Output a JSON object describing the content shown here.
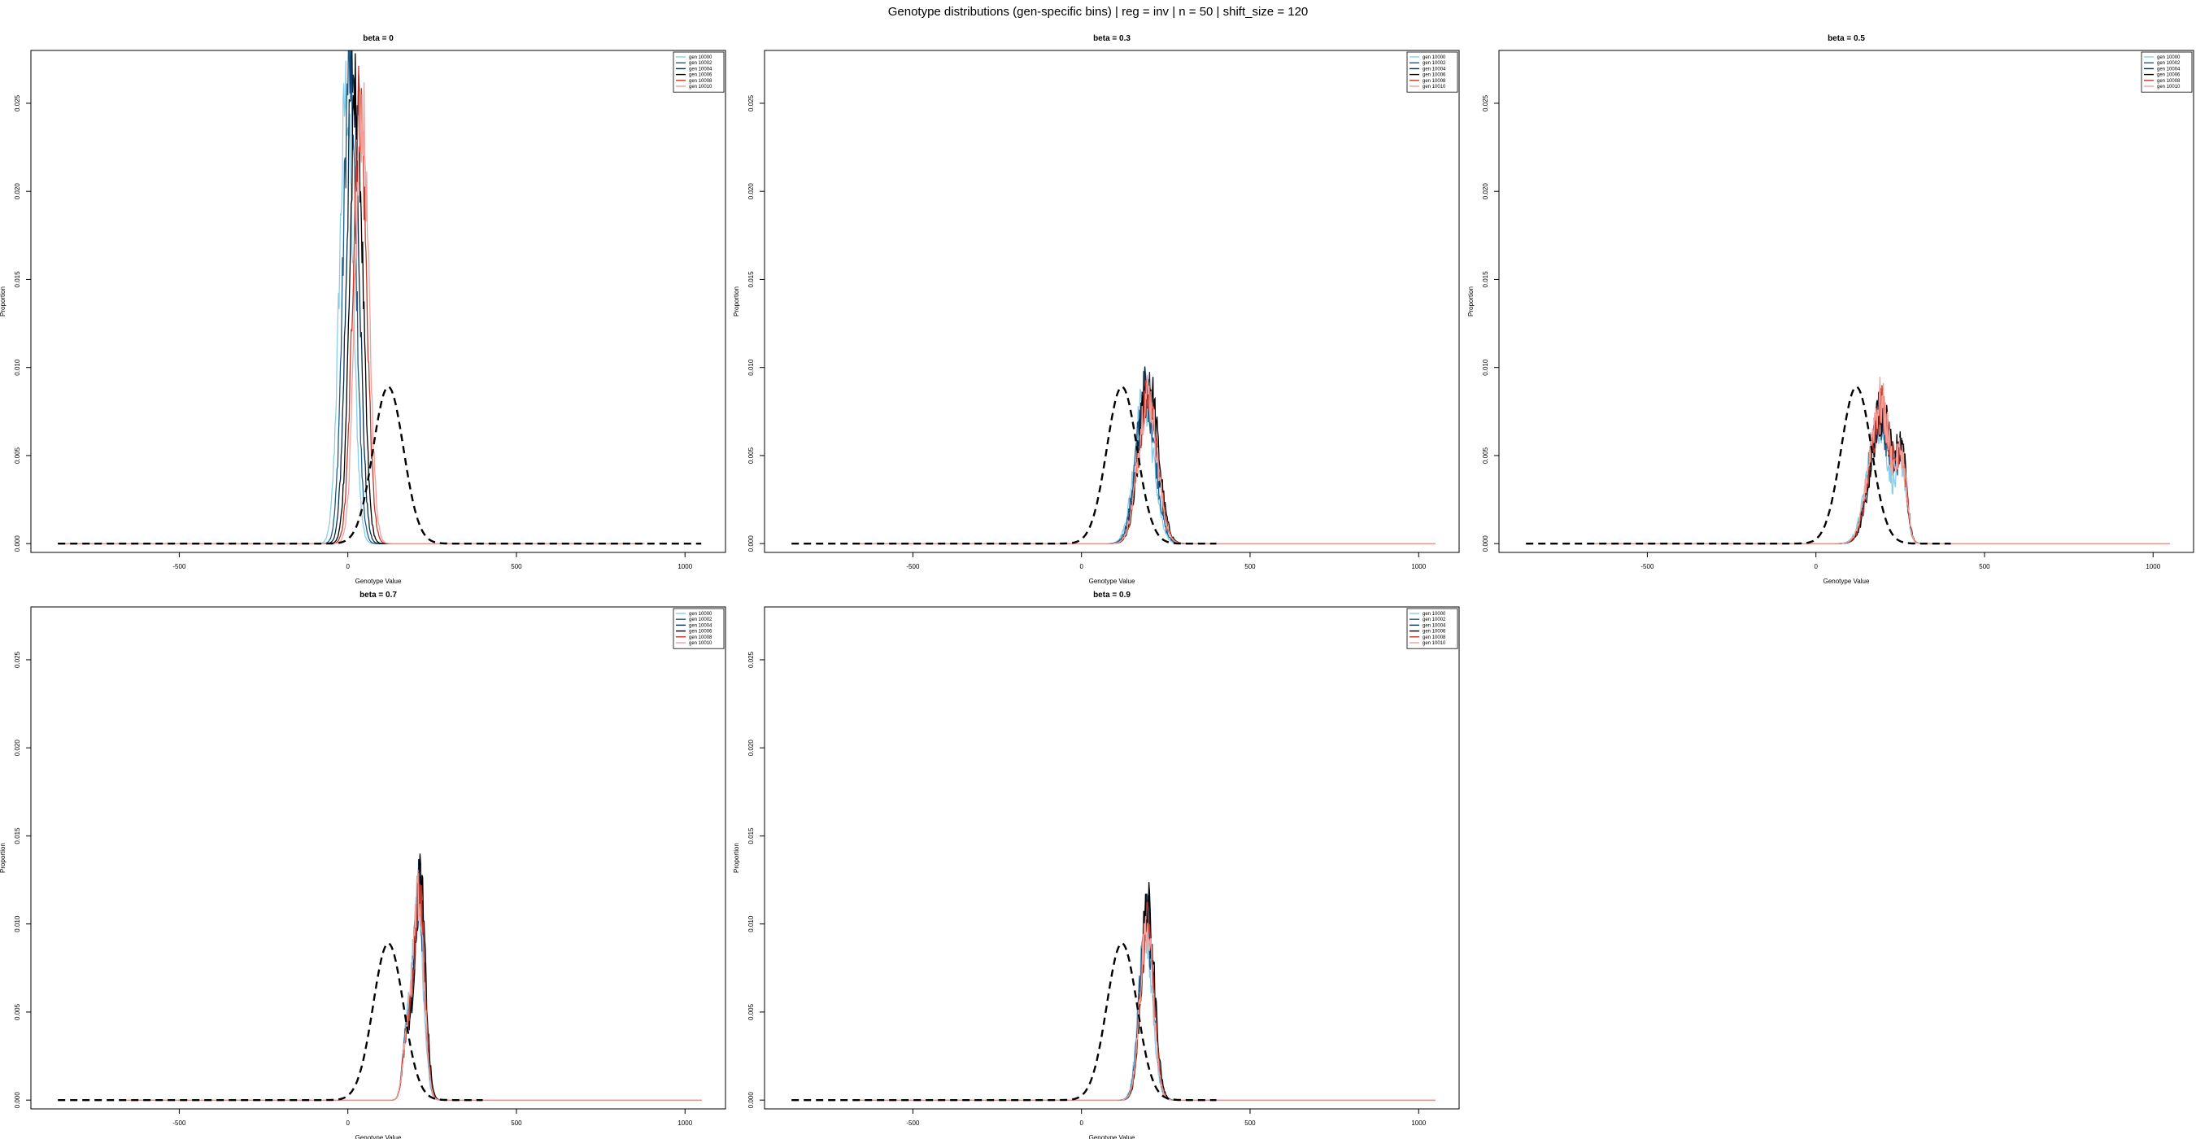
{
  "figure": {
    "title": "Genotype distributions (gen-specific bins) | reg = inv | n = 50 | shift_size = 120"
  },
  "colors": {
    "gen 10000": "#87ceeb",
    "gen 10002": "#1e5a8c",
    "gen 10004": "#0b2a48",
    "gen 10006": "#000000",
    "gen 10008": "#c0392b",
    "gen 10010": "#f4a09a",
    "reference": "#000000"
  },
  "chart_data": [
    {
      "type": "line",
      "title": "beta = 0",
      "xlabel": "Genotype Value",
      "ylabel": "Proportion",
      "xlim": [
        -940,
        1120
      ],
      "ylim": [
        -0.0005,
        0.028
      ],
      "xticks": [
        "-500",
        "0",
        "500",
        "1000"
      ],
      "yticks": [
        "0.000",
        "0.005",
        "0.010",
        "0.015",
        "0.020",
        "0.025"
      ],
      "legend": {
        "position": "top-right",
        "entries": [
          "gen 10000",
          "gen 10002",
          "gen 10004",
          "gen 10006",
          "gen 10008",
          "gen 10010"
        ]
      },
      "reference": {
        "style": "dashed",
        "mean": 120,
        "sd": 45,
        "peak": 0.0089,
        "xrange": [
          -860,
          1050
        ]
      },
      "series": [
        {
          "name": "gen 10000",
          "center": -5,
          "sd": 20,
          "peak": 0.0255,
          "xrange": [
            -860,
            880
          ],
          "noise": 0.12
        },
        {
          "name": "gen 10002",
          "center": 5,
          "sd": 19,
          "peak": 0.027,
          "xrange": [
            -860,
            880
          ],
          "noise": 0.12
        },
        {
          "name": "gen 10004",
          "center": 15,
          "sd": 19,
          "peak": 0.0268,
          "xrange": [
            -860,
            880
          ],
          "noise": 0.12
        },
        {
          "name": "gen 10006",
          "center": 25,
          "sd": 19,
          "peak": 0.0258,
          "xrange": [
            -860,
            880
          ],
          "noise": 0.12
        },
        {
          "name": "gen 10008",
          "center": 35,
          "sd": 20,
          "peak": 0.025,
          "xrange": [
            -860,
            880
          ],
          "noise": 0.12
        },
        {
          "name": "gen 10010",
          "center": 42,
          "sd": 20,
          "peak": 0.0245,
          "xrange": [
            -860,
            880
          ],
          "noise": 0.12
        }
      ]
    },
    {
      "type": "line",
      "title": "beta = 0.3",
      "xlabel": "Genotype Value",
      "ylabel": "Proportion",
      "xlim": [
        -940,
        1120
      ],
      "ylim": [
        -0.0005,
        0.028
      ],
      "xticks": [
        "-500",
        "0",
        "500",
        "1000"
      ],
      "yticks": [
        "0.000",
        "0.005",
        "0.010",
        "0.015",
        "0.020",
        "0.025"
      ],
      "legend": {
        "position": "top-right",
        "entries": [
          "gen 10000",
          "gen 10002",
          "gen 10004",
          "gen 10006",
          "gen 10008",
          "gen 10010"
        ]
      },
      "reference": {
        "style": "dashed",
        "mean": 120,
        "sd": 45,
        "peak": 0.0089,
        "xrange": [
          -860,
          400
        ]
      },
      "series": [
        {
          "name": "gen 10000",
          "center": 185,
          "sd": 28,
          "peak": 0.0082,
          "xrange": [
            -660,
            1050
          ],
          "noise": 0.18
        },
        {
          "name": "gen 10002",
          "center": 190,
          "sd": 28,
          "peak": 0.0086,
          "xrange": [
            -660,
            1050
          ],
          "noise": 0.18
        },
        {
          "name": "gen 10004",
          "center": 195,
          "sd": 28,
          "peak": 0.0088,
          "xrange": [
            -660,
            1050
          ],
          "noise": 0.18
        },
        {
          "name": "gen 10006",
          "center": 200,
          "sd": 28,
          "peak": 0.009,
          "xrange": [
            -660,
            1050
          ],
          "noise": 0.18
        },
        {
          "name": "gen 10008",
          "center": 198,
          "sd": 28,
          "peak": 0.0086,
          "xrange": [
            -660,
            1050
          ],
          "noise": 0.18
        },
        {
          "name": "gen 10010",
          "center": 196,
          "sd": 28,
          "peak": 0.0085,
          "xrange": [
            -660,
            1050
          ],
          "noise": 0.18
        }
      ]
    },
    {
      "type": "line",
      "title": "beta = 0.5",
      "xlabel": "Genotype Value",
      "ylabel": "Proportion",
      "xlim": [
        -940,
        1120
      ],
      "ylim": [
        -0.0005,
        0.028
      ],
      "xticks": [
        "-500",
        "0",
        "500",
        "1000"
      ],
      "yticks": [
        "0.000",
        "0.005",
        "0.010",
        "0.015",
        "0.020",
        "0.025"
      ],
      "legend": {
        "position": "top-right",
        "entries": [
          "gen 10000",
          "gen 10002",
          "gen 10004",
          "gen 10006",
          "gen 10008",
          "gen 10010"
        ]
      },
      "reference": {
        "style": "dashed",
        "mean": 120,
        "sd": 45,
        "peak": 0.0089,
        "xrange": [
          -860,
          400
        ]
      },
      "series": [
        {
          "name": "gen 10000",
          "center": 185,
          "sd": 32,
          "peak": 0.007,
          "xrange": [
            -660,
            1050
          ],
          "noise": 0.2,
          "second": {
            "center": 255,
            "sd": 14,
            "peak": 0.004
          }
        },
        {
          "name": "gen 10002",
          "center": 190,
          "sd": 32,
          "peak": 0.0072,
          "xrange": [
            -660,
            1050
          ],
          "noise": 0.2,
          "second": {
            "center": 255,
            "sd": 14,
            "peak": 0.0042
          }
        },
        {
          "name": "gen 10004",
          "center": 192,
          "sd": 32,
          "peak": 0.0074,
          "xrange": [
            -660,
            1050
          ],
          "noise": 0.2,
          "second": {
            "center": 255,
            "sd": 14,
            "peak": 0.0044
          }
        },
        {
          "name": "gen 10006",
          "center": 195,
          "sd": 32,
          "peak": 0.0075,
          "xrange": [
            -660,
            1050
          ],
          "noise": 0.2,
          "second": {
            "center": 255,
            "sd": 14,
            "peak": 0.0045
          }
        },
        {
          "name": "gen 10008",
          "center": 193,
          "sd": 32,
          "peak": 0.0078,
          "xrange": [
            -660,
            1050
          ],
          "noise": 0.2,
          "second": {
            "center": 255,
            "sd": 14,
            "peak": 0.0043
          }
        },
        {
          "name": "gen 10010",
          "center": 190,
          "sd": 32,
          "peak": 0.008,
          "xrange": [
            -660,
            1050
          ],
          "noise": 0.2,
          "second": {
            "center": 255,
            "sd": 14,
            "peak": 0.0042
          }
        }
      ]
    },
    {
      "type": "line",
      "title": "beta = 0.7",
      "xlabel": "Genotype Value",
      "ylabel": "Proportion",
      "xlim": [
        -940,
        1120
      ],
      "ylim": [
        -0.0005,
        0.028
      ],
      "xticks": [
        "-500",
        "0",
        "500",
        "1000"
      ],
      "yticks": [
        "0.000",
        "0.005",
        "0.010",
        "0.015",
        "0.020",
        "0.025"
      ],
      "legend": {
        "position": "top-right",
        "entries": [
          "gen 10000",
          "gen 10002",
          "gen 10004",
          "gen 10006",
          "gen 10008",
          "gen 10010"
        ]
      },
      "reference": {
        "style": "dashed",
        "mean": 120,
        "sd": 45,
        "peak": 0.0089,
        "xrange": [
          -860,
          400
        ]
      },
      "series": [
        {
          "name": "gen 10000",
          "center": 208,
          "sd": 16,
          "peak": 0.011,
          "xrange": [
            -660,
            1050
          ],
          "noise": 0.15,
          "second": {
            "center": 175,
            "sd": 12,
            "peak": 0.0035
          }
        },
        {
          "name": "gen 10002",
          "center": 210,
          "sd": 16,
          "peak": 0.0115,
          "xrange": [
            -660,
            1050
          ],
          "noise": 0.15,
          "second": {
            "center": 175,
            "sd": 12,
            "peak": 0.0035
          }
        },
        {
          "name": "gen 10004",
          "center": 212,
          "sd": 16,
          "peak": 0.012,
          "xrange": [
            -660,
            1050
          ],
          "noise": 0.15,
          "second": {
            "center": 175,
            "sd": 12,
            "peak": 0.0035
          }
        },
        {
          "name": "gen 10006",
          "center": 214,
          "sd": 16,
          "peak": 0.0125,
          "xrange": [
            -660,
            1050
          ],
          "noise": 0.15,
          "second": {
            "center": 175,
            "sd": 12,
            "peak": 0.0035
          }
        },
        {
          "name": "gen 10008",
          "center": 212,
          "sd": 16,
          "peak": 0.0118,
          "xrange": [
            -660,
            1050
          ],
          "noise": 0.15,
          "second": {
            "center": 175,
            "sd": 12,
            "peak": 0.0035
          }
        },
        {
          "name": "gen 10010",
          "center": 210,
          "sd": 16,
          "peak": 0.0115,
          "xrange": [
            -660,
            1050
          ],
          "noise": 0.15,
          "second": {
            "center": 175,
            "sd": 12,
            "peak": 0.0035
          }
        }
      ]
    },
    {
      "type": "line",
      "title": "beta = 0.9",
      "xlabel": "Genotype Value",
      "ylabel": "Proportion",
      "xlim": [
        -940,
        1120
      ],
      "ylim": [
        -0.0005,
        0.028
      ],
      "xticks": [
        "-500",
        "0",
        "500",
        "1000"
      ],
      "yticks": [
        "0.000",
        "0.005",
        "0.010",
        "0.015",
        "0.020",
        "0.025"
      ],
      "legend": {
        "position": "top-right",
        "entries": [
          "gen 10000",
          "gen 10002",
          "gen 10004",
          "gen 10006",
          "gen 10008",
          "gen 10010"
        ]
      },
      "reference": {
        "style": "dashed",
        "mean": 120,
        "sd": 45,
        "peak": 0.0089,
        "xrange": [
          -860,
          400
        ]
      },
      "series": [
        {
          "name": "gen 10000",
          "center": 190,
          "sd": 20,
          "peak": 0.0098,
          "xrange": [
            -660,
            1050
          ],
          "noise": 0.16
        },
        {
          "name": "gen 10002",
          "center": 192,
          "sd": 20,
          "peak": 0.0102,
          "xrange": [
            -660,
            1050
          ],
          "noise": 0.16
        },
        {
          "name": "gen 10004",
          "center": 195,
          "sd": 20,
          "peak": 0.0105,
          "xrange": [
            -660,
            1050
          ],
          "noise": 0.16
        },
        {
          "name": "gen 10006",
          "center": 197,
          "sd": 20,
          "peak": 0.0108,
          "xrange": [
            -660,
            1050
          ],
          "noise": 0.16
        },
        {
          "name": "gen 10008",
          "center": 195,
          "sd": 20,
          "peak": 0.01,
          "xrange": [
            -660,
            1050
          ],
          "noise": 0.16
        },
        {
          "name": "gen 10010",
          "center": 193,
          "sd": 20,
          "peak": 0.0098,
          "xrange": [
            -660,
            1050
          ],
          "noise": 0.16
        }
      ]
    }
  ]
}
